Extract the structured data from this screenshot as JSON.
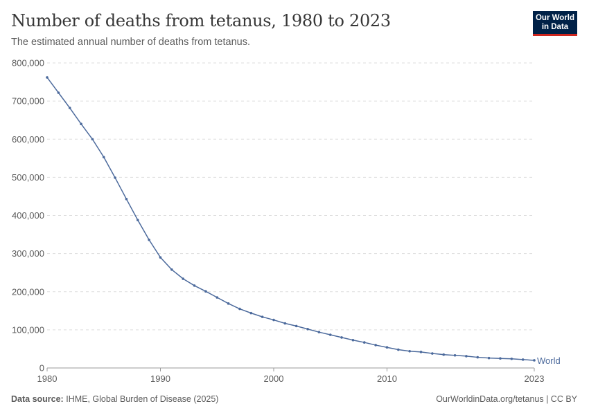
{
  "header": {
    "title": "Number of deaths from tetanus, 1980 to 2023",
    "subtitle": "The estimated annual number of deaths from tetanus.",
    "logo": "Our World in Data"
  },
  "footer": {
    "source_label": "Data source:",
    "source": "IHME, Global Burden of Disease (2025)",
    "link": "OurWorldinData.org/tetanus | CC BY"
  },
  "colors": {
    "series": "#4c6a9c",
    "grid": "#dddddd",
    "logo_bg": "#002147",
    "logo_accent": "#ce261e"
  },
  "chart_data": {
    "type": "line",
    "title": "Number of deaths from tetanus, 1980 to 2023",
    "xlim": [
      1980,
      2023
    ],
    "ylim": [
      0,
      800000
    ],
    "x_ticks": [
      "1980",
      "1990",
      "2000",
      "2010",
      "2023"
    ],
    "y_ticks": [
      "0",
      "100,000",
      "200,000",
      "300,000",
      "400,000",
      "500,000",
      "600,000",
      "700,000",
      "800,000"
    ],
    "grid": "horizontal dashed",
    "series": [
      {
        "name": "World",
        "x": [
          1980,
          1981,
          1982,
          1983,
          1984,
          1985,
          1986,
          1987,
          1988,
          1989,
          1990,
          1991,
          1992,
          1993,
          1994,
          1995,
          1996,
          1997,
          1998,
          1999,
          2000,
          2001,
          2002,
          2003,
          2004,
          2005,
          2006,
          2007,
          2008,
          2009,
          2010,
          2011,
          2012,
          2013,
          2014,
          2015,
          2016,
          2017,
          2018,
          2019,
          2020,
          2021,
          2022,
          2023
        ],
        "values": [
          762000,
          722000,
          682000,
          640000,
          600000,
          553000,
          499000,
          443000,
          388000,
          336000,
          290000,
          258000,
          234000,
          216000,
          201000,
          185000,
          169000,
          155000,
          144000,
          134000,
          126000,
          117000,
          110000,
          102000,
          94000,
          87000,
          80000,
          73000,
          67000,
          60000,
          54000,
          48000,
          44000,
          42000,
          38000,
          35000,
          33000,
          31000,
          28000,
          26000,
          25000,
          24000,
          22000,
          20000
        ]
      }
    ]
  }
}
